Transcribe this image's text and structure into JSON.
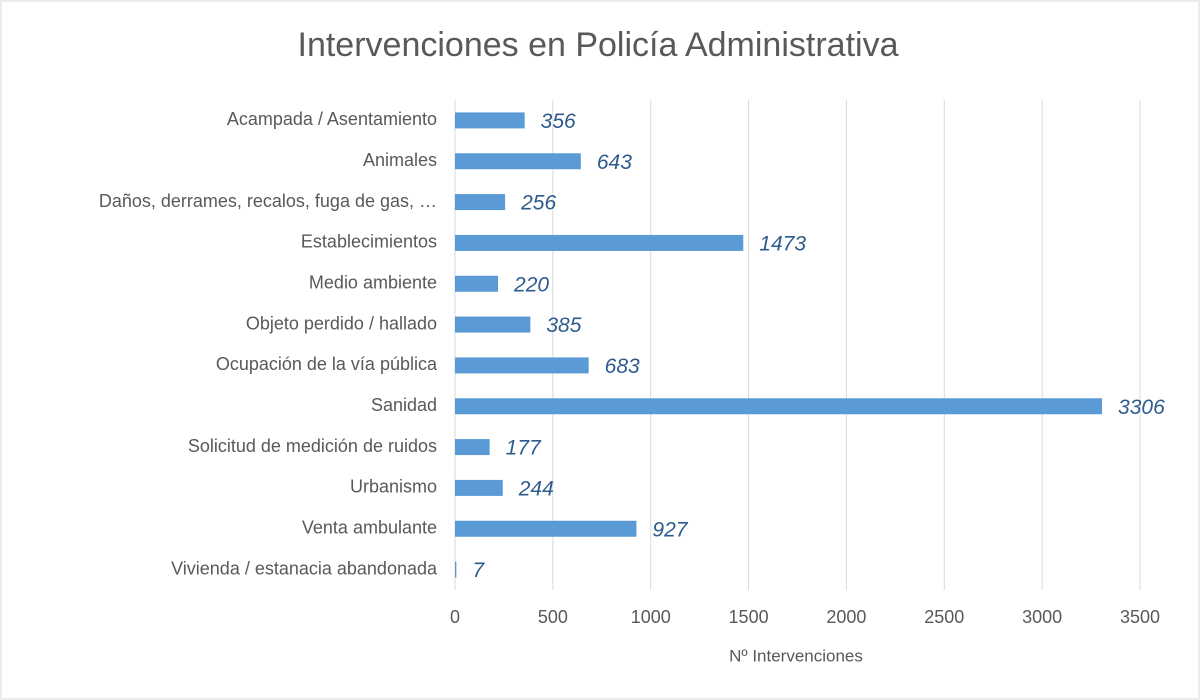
{
  "chart_data": {
    "type": "bar",
    "orientation": "horizontal",
    "title": "Intervenciones en Policía Administrativa",
    "x_label": "Nº Intervenciones",
    "categories": [
      "Acampada / Asentamiento",
      "Animales",
      "Daños, derrames, recalos, fuga de gas, …",
      "Establecimientos",
      "Medio ambiente",
      "Objeto perdido / hallado",
      "Ocupación de la vía pública",
      "Sanidad",
      "Solicitud de medición de ruidos",
      "Urbanismo",
      "Venta ambulante",
      "Vivienda / estanacia abandonada"
    ],
    "values": [
      356,
      643,
      256,
      1473,
      220,
      385,
      683,
      3306,
      177,
      244,
      927,
      7
    ],
    "color": "#5b9bd5",
    "label_color": "#2e5b8e",
    "xlim": [
      0,
      3500
    ],
    "xticks": [
      0,
      500,
      1000,
      1500,
      2000,
      2500,
      3000,
      3500
    ],
    "grid": true
  }
}
